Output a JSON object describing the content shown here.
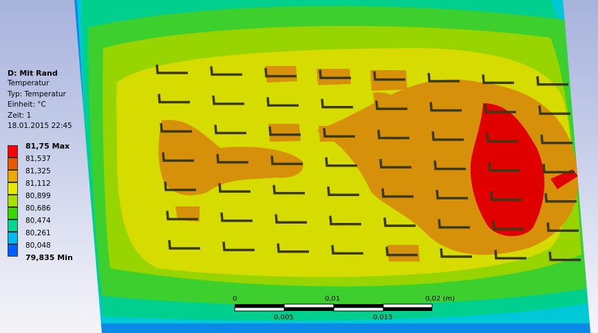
{
  "result_info": {
    "title": "D: Mit Rand",
    "lines": [
      "Temperatur",
      "Typ: Temperatur",
      "Einheit: °C",
      "Zeit: 1",
      "18.01.2015 22:45"
    ]
  },
  "legend": {
    "items": [
      {
        "label": "81,75 Max",
        "color": "#ff0000",
        "bold": true
      },
      {
        "label": "81,537",
        "color": "#e85a00"
      },
      {
        "label": "81,325",
        "color": "#f0a800"
      },
      {
        "label": "81,112",
        "color": "#e8e800"
      },
      {
        "label": "80,899",
        "color": "#a8e000"
      },
      {
        "label": "80,686",
        "color": "#38d800"
      },
      {
        "label": "80,474",
        "color": "#00d890"
      },
      {
        "label": "80,261",
        "color": "#00b8f0"
      },
      {
        "label": "80,048",
        "color": "#0060ff"
      },
      {
        "label": "79,835 Min",
        "color": "#0000d8",
        "bold": true
      }
    ]
  },
  "scale_bar": {
    "top_labels": [
      "0",
      "0,01",
      "0,02 (m)"
    ],
    "bottom_labels": [
      "0,005",
      "0,015"
    ]
  },
  "colors": {
    "red": "#e00000",
    "orange": "#d89008",
    "yellow": "#d8dc00",
    "lime": "#90d400",
    "green": "#2cc82c",
    "teal": "#00c888",
    "cyan": "#00c8d8",
    "blue": "#0088e8",
    "navy": "#1a3ab0"
  },
  "icons": {
    "features": "fin-icon"
  }
}
